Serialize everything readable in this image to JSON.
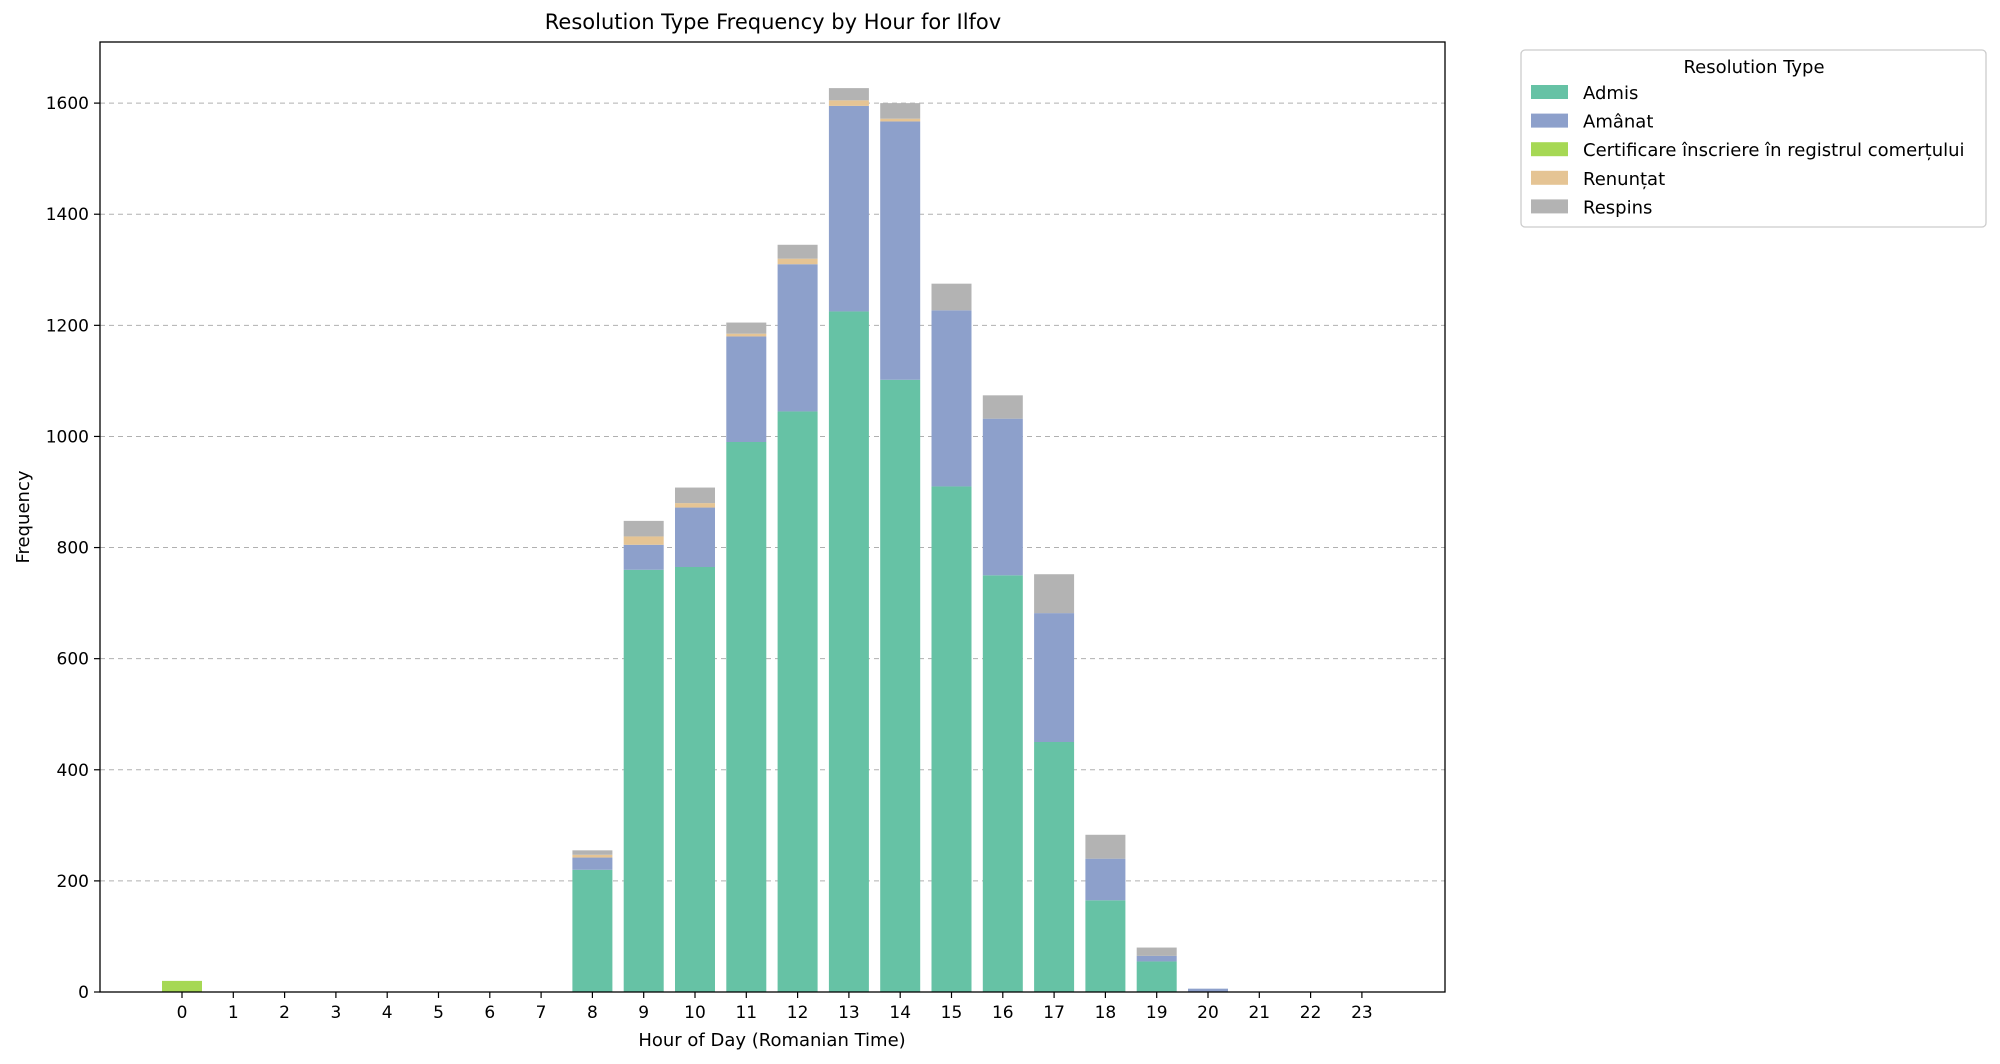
{
  "chart_data": {
    "type": "bar",
    "stacked": true,
    "title": "Resolution Type Frequency by Hour for Ilfov",
    "xlabel": "Hour of Day (Romanian Time)",
    "ylabel": "Frequency",
    "ylim": [
      0,
      1710
    ],
    "yticks": [
      0,
      200,
      400,
      600,
      800,
      1000,
      1200,
      1400,
      1600
    ],
    "grid": "y-dashed",
    "legend_title": "Resolution Type",
    "legend_position": "outside-top-right",
    "categories": [
      "0",
      "1",
      "2",
      "3",
      "4",
      "5",
      "6",
      "7",
      "8",
      "9",
      "10",
      "11",
      "12",
      "13",
      "14",
      "15",
      "16",
      "17",
      "18",
      "19",
      "20",
      "21",
      "22",
      "23"
    ],
    "series": [
      {
        "name": "Admis",
        "color": "#66c2a5",
        "values": [
          0,
          0,
          0,
          0,
          0,
          0,
          0,
          0,
          220,
          760,
          765,
          990,
          1045,
          1225,
          1102,
          910,
          750,
          450,
          165,
          55,
          0,
          0,
          0,
          0
        ]
      },
      {
        "name": "Amânat",
        "color": "#8da0cb",
        "values": [
          0,
          0,
          0,
          0,
          0,
          0,
          0,
          0,
          22,
          45,
          107,
          190,
          265,
          370,
          465,
          317,
          282,
          232,
          75,
          10,
          6,
          0,
          0,
          0
        ]
      },
      {
        "name": "Certificare înscriere în registrul comerțului",
        "color": "#a6d854",
        "values": [
          20,
          0,
          0,
          0,
          0,
          0,
          0,
          0,
          0,
          0,
          0,
          0,
          0,
          0,
          0,
          0,
          0,
          0,
          0,
          0,
          0,
          0,
          0,
          0
        ]
      },
      {
        "name": "Renunțat",
        "color": "#e5c494",
        "values": [
          0,
          0,
          0,
          0,
          0,
          0,
          0,
          0,
          5,
          15,
          8,
          5,
          10,
          10,
          5,
          0,
          0,
          0,
          0,
          0,
          0,
          0,
          0,
          0
        ]
      },
      {
        "name": "Respins",
        "color": "#b3b3b3",
        "values": [
          0,
          0,
          0,
          0,
          0,
          0,
          0,
          0,
          8,
          28,
          28,
          20,
          25,
          22,
          28,
          48,
          42,
          70,
          43,
          15,
          0,
          0,
          0,
          0
        ]
      }
    ]
  }
}
